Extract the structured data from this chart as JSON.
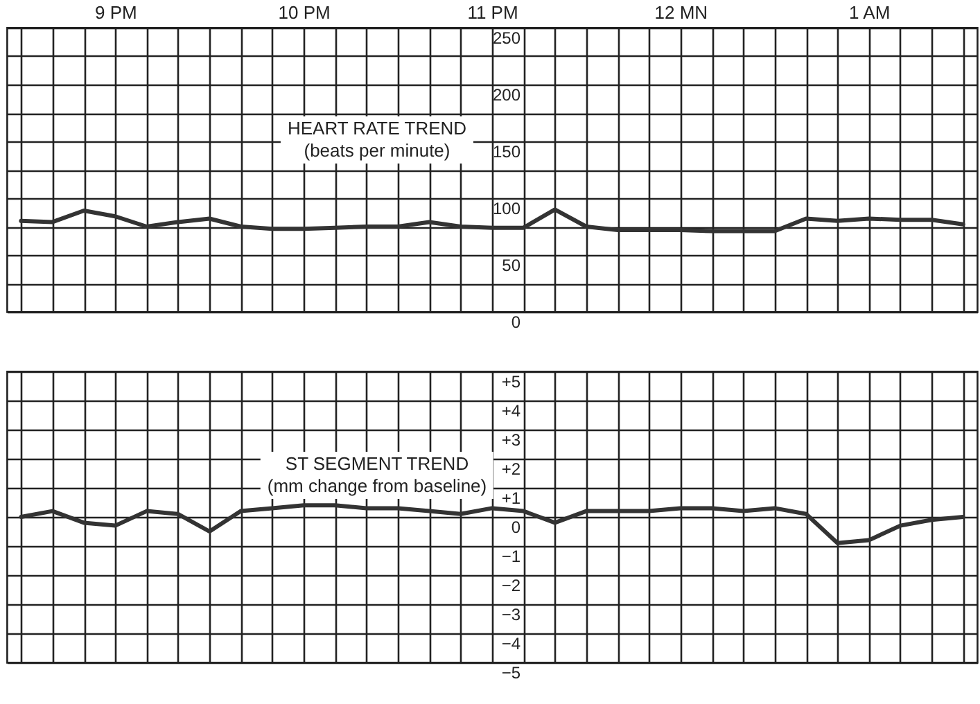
{
  "chart_data": [
    {
      "type": "line",
      "title": "HEART RATE TREND",
      "subtitle": "(beats per minute)",
      "color": "#333333",
      "grid": true,
      "categories": [
        null,
        null,
        null,
        "9 PM",
        null,
        null,
        null,
        null,
        null,
        "10 PM",
        null,
        null,
        null,
        null,
        null,
        "11 PM",
        null,
        null,
        null,
        null,
        null,
        "12 MN",
        null,
        null,
        null,
        null,
        null,
        "1 AM",
        null,
        null,
        null
      ],
      "values": [
        80,
        79,
        89,
        84,
        75,
        79,
        82,
        75,
        73,
        73,
        74,
        75,
        75,
        79,
        75,
        74,
        74,
        90,
        75,
        72,
        72,
        72,
        71,
        71,
        71,
        82,
        80,
        82,
        81,
        81,
        77
      ],
      "ylim": [
        0,
        250
      ],
      "yticks": [
        0,
        {
          "value": 25,
          "label": null
        },
        50,
        {
          "value": 75,
          "label": null
        },
        100,
        {
          "value": 125,
          "label": null
        },
        150,
        {
          "value": 175,
          "label": null
        },
        200,
        {
          "value": 225,
          "label": null
        },
        250
      ]
    },
    {
      "type": "line",
      "title": "ST SEGMENT TREND",
      "subtitle": "(mm change from baseline)",
      "color": "#333333",
      "grid": true,
      "tick_labels": "y",
      "categories": [
        null,
        null,
        null,
        null,
        null,
        null,
        null,
        null,
        null,
        null,
        null,
        null,
        null,
        null,
        null,
        null,
        null,
        null,
        null,
        null,
        null,
        null,
        null,
        null,
        null,
        null,
        null,
        null,
        null,
        null,
        null
      ],
      "values": [
        0,
        0.2,
        -0.2,
        -0.3,
        0.2,
        0.1,
        -0.5,
        0.2,
        0.3,
        0.4,
        0.4,
        0.3,
        0.3,
        0.2,
        0.1,
        0.3,
        0.2,
        -0.2,
        0.2,
        0.2,
        0.2,
        0.3,
        0.3,
        0.2,
        0.3,
        0.1,
        -0.9,
        -0.8,
        -0.3,
        -0.1,
        0
      ],
      "ylim": [
        -5,
        5
      ],
      "yticks": [
        {
          "value": -5,
          "label": "−5"
        },
        {
          "value": -4,
          "label": "−4"
        },
        {
          "value": -3,
          "label": "−3"
        },
        {
          "value": -2,
          "label": "−2"
        },
        {
          "value": -1,
          "label": "−1"
        },
        0,
        {
          "value": 1,
          "label": "+1"
        },
        {
          "value": 2,
          "label": "+2"
        },
        {
          "value": 3,
          "label": "+3"
        },
        {
          "value": 4,
          "label": "+4"
        },
        {
          "value": 5,
          "label": "+5"
        }
      ]
    }
  ]
}
